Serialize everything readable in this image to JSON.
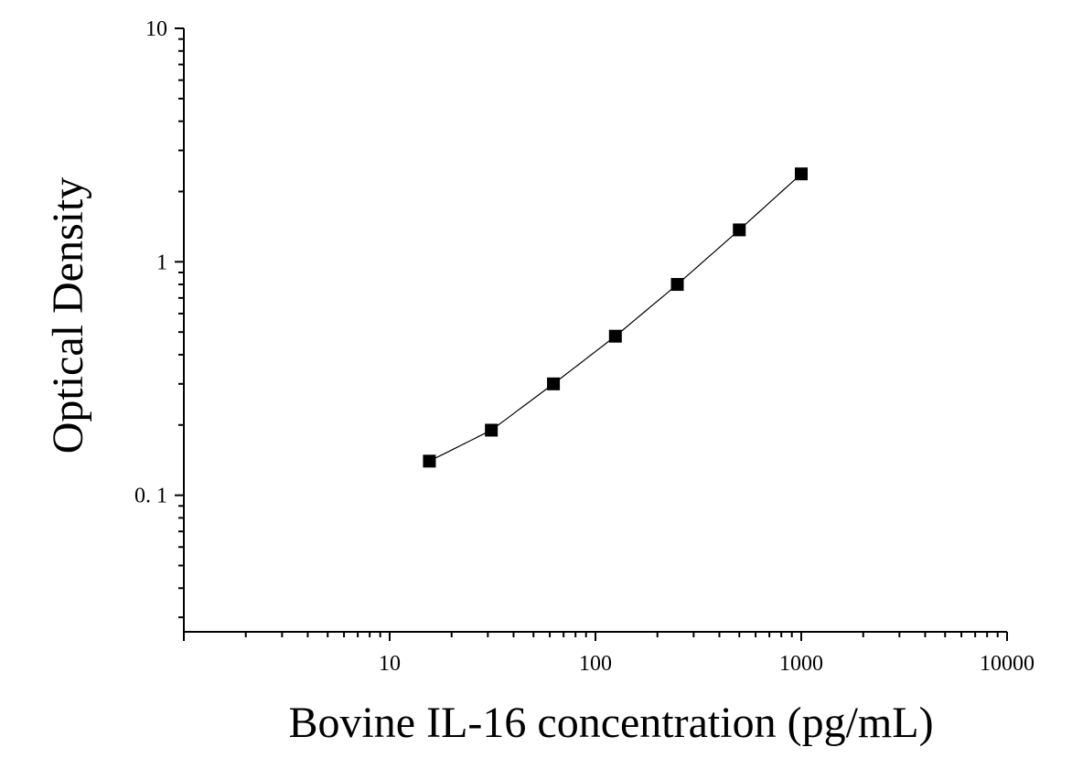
{
  "chart_data": {
    "type": "scatter",
    "title": "",
    "xlabel": "Bovine IL-16 concentration (pg/mL)",
    "ylabel": "Optical Density",
    "x_scale": "log",
    "y_scale": "log",
    "xlim": [
      1,
      10000
    ],
    "ylim": [
      0.026,
      10
    ],
    "x_tick_labels": [
      {
        "value": 10,
        "label": "10"
      },
      {
        "value": 100,
        "label": "100"
      },
      {
        "value": 1000,
        "label": "1000"
      },
      {
        "value": 10000,
        "label": "10000"
      }
    ],
    "y_tick_labels": [
      {
        "value": 10,
        "label": "10"
      },
      {
        "value": 1,
        "label": "1"
      },
      {
        "value": 0.1,
        "label": "0. 1"
      }
    ],
    "grid": false,
    "legend": "none",
    "series": [
      {
        "x": [
          15.6,
          31.2,
          62.5,
          125,
          250,
          500,
          1000
        ],
        "y": [
          0.14,
          0.19,
          0.3,
          0.48,
          0.8,
          1.37,
          2.38
        ],
        "marker": "square",
        "color": "#000000",
        "fit_curve": true
      }
    ]
  }
}
